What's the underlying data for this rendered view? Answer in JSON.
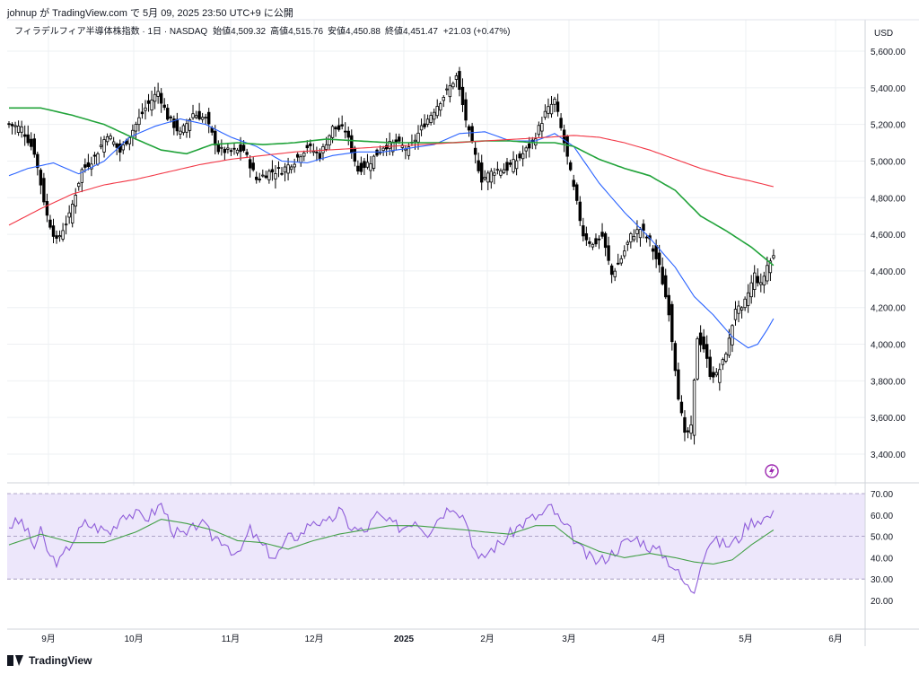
{
  "header": {
    "publish_line": "johnup が TradingView.com で 5月 09, 2025 23:50 UTC+9 に公開",
    "symbol_line": "フィラデルフィア半導体株指数 · 1日 · NASDAQ",
    "ohlc": {
      "open_label": "始値",
      "open": "4,509.32",
      "high_label": "高値",
      "high": "4,515.76",
      "low_label": "安値",
      "low": "4,450.88",
      "close_label": "終値",
      "close": "4,451.47",
      "change": "+21.03 (+0.47%)"
    }
  },
  "brand": {
    "name": "TradingView"
  },
  "colors": {
    "up_fill": "#ffffff",
    "down_fill": "#000000",
    "candle_wick": "#000000",
    "ma_blue": "#2962ff",
    "ma_green": "#21a33a",
    "ma_red": "#f23645",
    "rsi_line": "#8e5cd9",
    "rsi_ma": "#43a047",
    "rsi_band": "#ede7fb",
    "grid": "#eef0f3"
  },
  "chart_data": [
    {
      "type": "candlestick",
      "title": "フィラデルフィア半導体株指数 · 1日 · NASDAQ",
      "currency": "USD",
      "ylim": [
        3300,
        5700
      ],
      "y_ticks": [
        3400,
        3600,
        3800,
        4000,
        4200,
        4400,
        4600,
        4800,
        5000,
        5200,
        5400,
        5600
      ],
      "y_tick_labels": [
        "3,400.00",
        "3,600.00",
        "3,800.00",
        "4,000.00",
        "4,200.00",
        "4,400.00",
        "4,600.00",
        "4,800.00",
        "5,000.00",
        "5,200.00",
        "5,400.00",
        "5,600.00"
      ],
      "x_tick_labels": [
        "9月",
        "10月",
        "11月",
        "12月",
        "2025",
        "2月",
        "3月",
        "4月",
        "5月",
        "6月"
      ],
      "grid": true,
      "series": [
        {
          "name": "price",
          "anchors": [
            [
              0,
              5200
            ],
            [
              4,
              5180
            ],
            [
              8,
              5050
            ],
            [
              12,
              4700
            ],
            [
              15,
              4560
            ],
            [
              19,
              4700
            ],
            [
              23,
              4950
            ],
            [
              27,
              5020
            ],
            [
              31,
              5150
            ],
            [
              35,
              5050
            ],
            [
              39,
              5170
            ],
            [
              43,
              5290
            ],
            [
              47,
              5380
            ],
            [
              50,
              5240
            ],
            [
              54,
              5150
            ],
            [
              58,
              5260
            ],
            [
              62,
              5230
            ],
            [
              66,
              5060
            ],
            [
              70,
              5050
            ],
            [
              74,
              5060
            ],
            [
              78,
              4900
            ],
            [
              82,
              4940
            ],
            [
              86,
              4950
            ],
            [
              90,
              5000
            ],
            [
              94,
              5080
            ],
            [
              98,
              5030
            ],
            [
              102,
              5180
            ],
            [
              106,
              5170
            ],
            [
              110,
              4950
            ],
            [
              114,
              5000
            ],
            [
              118,
              5080
            ],
            [
              122,
              5100
            ],
            [
              126,
              5060
            ],
            [
              130,
              5180
            ],
            [
              134,
              5280
            ],
            [
              138,
              5380
            ],
            [
              141,
              5460
            ],
            [
              145,
              5150
            ],
            [
              149,
              4900
            ],
            [
              153,
              4950
            ],
            [
              157,
              4960
            ],
            [
              161,
              5020
            ],
            [
              165,
              5100
            ],
            [
              169,
              5260
            ],
            [
              172,
              5330
            ],
            [
              175,
              5100
            ],
            [
              178,
              4850
            ],
            [
              181,
              4600
            ],
            [
              184,
              4540
            ],
            [
              187,
              4590
            ],
            [
              190,
              4380
            ],
            [
              193,
              4470
            ],
            [
              196,
              4590
            ],
            [
              199,
              4630
            ],
            [
              202,
              4560
            ],
            [
              205,
              4420
            ],
            [
              208,
              4180
            ],
            [
              211,
              3720
            ],
            [
              213,
              3500
            ],
            [
              215,
              3540
            ],
            [
              217,
              4040
            ],
            [
              219,
              3980
            ],
            [
              221,
              3840
            ],
            [
              223,
              3830
            ],
            [
              225,
              3900
            ],
            [
              227,
              4020
            ],
            [
              229,
              4200
            ],
            [
              231,
              4180
            ],
            [
              233,
              4280
            ],
            [
              235,
              4380
            ],
            [
              237,
              4320
            ],
            [
              239,
              4430
            ],
            [
              241,
              4480
            ]
          ]
        },
        {
          "name": "MA-blue",
          "anchors": [
            [
              0,
              4920
            ],
            [
              6,
              4960
            ],
            [
              14,
              4990
            ],
            [
              22,
              4930
            ],
            [
              30,
              5000
            ],
            [
              38,
              5130
            ],
            [
              46,
              5190
            ],
            [
              54,
              5230
            ],
            [
              62,
              5200
            ],
            [
              70,
              5130
            ],
            [
              78,
              5080
            ],
            [
              86,
              5000
            ],
            [
              94,
              4990
            ],
            [
              102,
              5030
            ],
            [
              110,
              5050
            ],
            [
              118,
              5050
            ],
            [
              126,
              5070
            ],
            [
              134,
              5090
            ],
            [
              142,
              5150
            ],
            [
              150,
              5160
            ],
            [
              158,
              5110
            ],
            [
              166,
              5110
            ],
            [
              172,
              5150
            ],
            [
              178,
              5080
            ],
            [
              186,
              4880
            ],
            [
              194,
              4720
            ],
            [
              202,
              4580
            ],
            [
              210,
              4420
            ],
            [
              216,
              4260
            ],
            [
              222,
              4160
            ],
            [
              228,
              4040
            ],
            [
              233,
              3980
            ],
            [
              236,
              4000
            ],
            [
              239,
              4080
            ],
            [
              241,
              4140
            ]
          ]
        },
        {
          "name": "MA-green",
          "anchors": [
            [
              0,
              5290
            ],
            [
              10,
              5290
            ],
            [
              20,
              5250
            ],
            [
              30,
              5200
            ],
            [
              40,
              5120
            ],
            [
              48,
              5060
            ],
            [
              56,
              5040
            ],
            [
              64,
              5090
            ],
            [
              72,
              5100
            ],
            [
              80,
              5090
            ],
            [
              90,
              5100
            ],
            [
              100,
              5120
            ],
            [
              110,
              5110
            ],
            [
              120,
              5100
            ],
            [
              130,
              5100
            ],
            [
              140,
              5100
            ],
            [
              150,
              5110
            ],
            [
              158,
              5110
            ],
            [
              166,
              5100
            ],
            [
              172,
              5100
            ],
            [
              178,
              5080
            ],
            [
              186,
              5010
            ],
            [
              194,
              4960
            ],
            [
              202,
              4920
            ],
            [
              210,
              4840
            ],
            [
              218,
              4700
            ],
            [
              226,
              4620
            ],
            [
              234,
              4530
            ],
            [
              241,
              4430
            ]
          ]
        },
        {
          "name": "MA-red",
          "anchors": [
            [
              0,
              4650
            ],
            [
              10,
              4740
            ],
            [
              20,
              4820
            ],
            [
              30,
              4870
            ],
            [
              40,
              4900
            ],
            [
              50,
              4940
            ],
            [
              60,
              4980
            ],
            [
              70,
              5010
            ],
            [
              80,
              5030
            ],
            [
              90,
              5050
            ],
            [
              100,
              5060
            ],
            [
              110,
              5070
            ],
            [
              120,
              5080
            ],
            [
              130,
              5090
            ],
            [
              140,
              5100
            ],
            [
              150,
              5110
            ],
            [
              160,
              5120
            ],
            [
              170,
              5130
            ],
            [
              178,
              5140
            ],
            [
              186,
              5130
            ],
            [
              194,
              5100
            ],
            [
              202,
              5060
            ],
            [
              210,
              5010
            ],
            [
              218,
              4960
            ],
            [
              226,
              4920
            ],
            [
              234,
              4890
            ],
            [
              241,
              4860
            ]
          ]
        }
      ]
    },
    {
      "type": "line",
      "title": "RSI",
      "ylim": [
        17,
        74
      ],
      "y_ticks": [
        20,
        30,
        40,
        50,
        60,
        70
      ],
      "y_tick_labels": [
        "20.00",
        "30.00",
        "40.00",
        "50.00",
        "60.00",
        "70.00"
      ],
      "bands": {
        "upper": 70,
        "middle": 50,
        "lower": 30
      },
      "series": [
        {
          "name": "RSI",
          "anchors": [
            [
              0,
              55
            ],
            [
              4,
              57
            ],
            [
              8,
              45
            ],
            [
              10,
              52
            ],
            [
              13,
              40
            ],
            [
              16,
              38
            ],
            [
              20,
              48
            ],
            [
              24,
              56
            ],
            [
              28,
              54
            ],
            [
              32,
              52
            ],
            [
              36,
              61
            ],
            [
              40,
              60
            ],
            [
              44,
              59
            ],
            [
              48,
              65
            ],
            [
              52,
              52
            ],
            [
              56,
              50
            ],
            [
              60,
              57
            ],
            [
              64,
              50
            ],
            [
              68,
              48
            ],
            [
              72,
              40
            ],
            [
              76,
              53
            ],
            [
              80,
              45
            ],
            [
              84,
              40
            ],
            [
              88,
              49
            ],
            [
              92,
              51
            ],
            [
              96,
              58
            ],
            [
              100,
              55
            ],
            [
              104,
              62
            ],
            [
              108,
              54
            ],
            [
              112,
              52
            ],
            [
              116,
              60
            ],
            [
              120,
              56
            ],
            [
              124,
              54
            ],
            [
              128,
              58
            ],
            [
              132,
              52
            ],
            [
              136,
              60
            ],
            [
              140,
              65
            ],
            [
              144,
              58
            ],
            [
              148,
              38
            ],
            [
              152,
              44
            ],
            [
              156,
              48
            ],
            [
              160,
              54
            ],
            [
              164,
              58
            ],
            [
              168,
              60
            ],
            [
              171,
              64
            ],
            [
              174,
              56
            ],
            [
              177,
              52
            ],
            [
              180,
              44
            ],
            [
              183,
              40
            ],
            [
              186,
              38
            ],
            [
              190,
              42
            ],
            [
              194,
              47
            ],
            [
              198,
              49
            ],
            [
              202,
              45
            ],
            [
              206,
              42
            ],
            [
              210,
              35
            ],
            [
              212,
              30
            ],
            [
              214,
              26
            ],
            [
              216,
              25
            ],
            [
              218,
              38
            ],
            [
              221,
              48
            ],
            [
              224,
              47
            ],
            [
              227,
              46
            ],
            [
              230,
              49
            ],
            [
              233,
              56
            ],
            [
              236,
              58
            ],
            [
              239,
              59
            ],
            [
              241,
              60
            ]
          ]
        },
        {
          "name": "RSI-MA",
          "anchors": [
            [
              0,
              46
            ],
            [
              10,
              51
            ],
            [
              20,
              47
            ],
            [
              30,
              47
            ],
            [
              40,
              52
            ],
            [
              48,
              58
            ],
            [
              56,
              56
            ],
            [
              64,
              53
            ],
            [
              72,
              48
            ],
            [
              80,
              47
            ],
            [
              88,
              44
            ],
            [
              96,
              48
            ],
            [
              104,
              51
            ],
            [
              112,
              53
            ],
            [
              120,
              55
            ],
            [
              128,
              55
            ],
            [
              136,
              54
            ],
            [
              144,
              53
            ],
            [
              150,
              52
            ],
            [
              158,
              51
            ],
            [
              166,
              55
            ],
            [
              172,
              55
            ],
            [
              178,
              48
            ],
            [
              186,
              43
            ],
            [
              194,
              40
            ],
            [
              202,
              42
            ],
            [
              210,
              40
            ],
            [
              216,
              38
            ],
            [
              222,
              37
            ],
            [
              228,
              39
            ],
            [
              234,
              46
            ],
            [
              241,
              53
            ]
          ]
        }
      ]
    }
  ]
}
